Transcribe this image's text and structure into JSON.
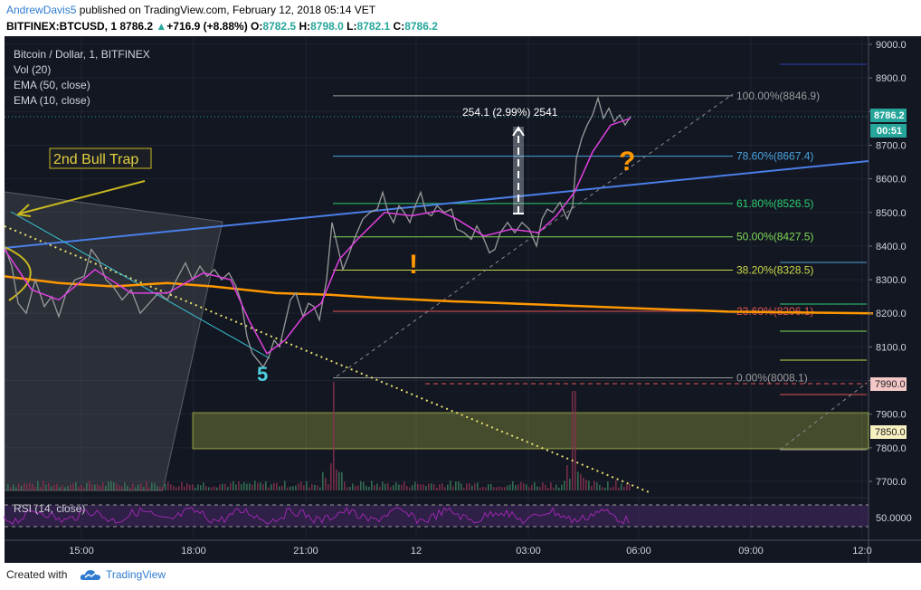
{
  "header": {
    "author": "AndrewDavis5",
    "published": "published on TradingView.com, February 12, 2018 05:14 VET",
    "symbol": "BITFINEX:BTCUSD, 1",
    "last": "8786.2",
    "change": "+716.9 (+8.88%)",
    "change_arrow": "▲",
    "o_label": "O:",
    "o": "8782.5",
    "h_label": "H:",
    "h": "8798.0",
    "l_label": "L:",
    "l": "8782.1",
    "c_label": "C:",
    "c": "8786.2"
  },
  "legend": {
    "title": "Bitcoin / Dollar, 1, BITFINEX",
    "vol": "Vol (20)",
    "ema50": "EMA (50, close)",
    "ema10": "EMA (10, close)"
  },
  "annotations": {
    "bull_trap": "2nd Bull Trap",
    "wave": "5",
    "measure": "254.1 (2.99%) 2541",
    "exclaim": "!",
    "question": "?"
  },
  "price_badges": {
    "current": "8786.2",
    "countdown": "00:51",
    "line1": "7990.0",
    "line2": "7850.0"
  },
  "rsi_label": "RSI (14, close)",
  "footer": {
    "created_with": "Created with",
    "brand": "TradingView"
  },
  "colors": {
    "background": "#131722",
    "up_candle": "#9a9a9a",
    "down_candle": "#c0407a",
    "ema10": "#e040e0",
    "ema50": "#ff9800",
    "trendline_blue": "#4a7ee8",
    "rsi": "#9c27b0",
    "brand": "#2e7bcf"
  },
  "chart_data": {
    "type": "line",
    "title": "Bitcoin / Dollar, 1, BITFINEX",
    "y_axis": {
      "min": 7650,
      "max": 9000,
      "ticks": [
        "9000.0",
        "8900.0",
        "8800.0",
        "8700.0",
        "8600.0",
        "8500.0",
        "8400.0",
        "8300.0",
        "8200.0",
        "8100.0",
        "8000.0",
        "7900.0",
        "7800.0",
        "7700.0"
      ]
    },
    "x_axis": {
      "ticks": [
        "15:00",
        "18:00",
        "21:00",
        "12",
        "03:00",
        "06:00",
        "09:00",
        "12:0"
      ]
    },
    "rsi_axis": {
      "ticks": [
        "50.0000"
      ]
    },
    "fibonacci": [
      {
        "level": "100.00%",
        "price": 8846.9,
        "label": "100.00%(8846.9)",
        "color": "#9a9a9a"
      },
      {
        "level": "78.60%",
        "price": 8667.4,
        "label": "78.60%(8667.4)",
        "color": "#4aa3df"
      },
      {
        "level": "61.80%",
        "price": 8526.5,
        "label": "61.80%(8526.5)",
        "color": "#2ecc71"
      },
      {
        "level": "50.00%",
        "price": 8427.5,
        "label": "50.00%(8427.5)",
        "color": "#7ed957"
      },
      {
        "level": "38.20%",
        "price": 8328.5,
        "label": "38.20%(8328.5)",
        "color": "#c9d94a"
      },
      {
        "level": "23.60%",
        "price": 8206.1,
        "label": "23.60%(8206.1)",
        "color": "#e05555"
      },
      {
        "level": "0.00%",
        "price": 8008.1,
        "label": "0.00%(8008.1)",
        "color": "#9a9a9a"
      }
    ],
    "price_path": [
      [
        0,
        8400
      ],
      [
        8,
        8340
      ],
      [
        15,
        8230
      ],
      [
        24,
        8200
      ],
      [
        34,
        8300
      ],
      [
        44,
        8220
      ],
      [
        52,
        8250
      ],
      [
        60,
        8190
      ],
      [
        68,
        8260
      ],
      [
        78,
        8300
      ],
      [
        88,
        8310
      ],
      [
        96,
        8390
      ],
      [
        104,
        8360
      ],
      [
        112,
        8300
      ],
      [
        120,
        8280
      ],
      [
        130,
        8240
      ],
      [
        140,
        8270
      ],
      [
        150,
        8200
      ],
      [
        160,
        8230
      ],
      [
        170,
        8260
      ],
      [
        180,
        8240
      ],
      [
        190,
        8300
      ],
      [
        200,
        8350
      ],
      [
        208,
        8300
      ],
      [
        216,
        8340
      ],
      [
        224,
        8310
      ],
      [
        232,
        8330
      ],
      [
        240,
        8300
      ],
      [
        248,
        8320
      ],
      [
        256,
        8280
      ],
      [
        262,
        8230
      ],
      [
        268,
        8130
      ],
      [
        274,
        8080
      ],
      [
        280,
        8060
      ],
      [
        286,
        8040
      ],
      [
        292,
        8070
      ],
      [
        298,
        8120
      ],
      [
        304,
        8100
      ],
      [
        310,
        8170
      ],
      [
        316,
        8240
      ],
      [
        322,
        8260
      ],
      [
        330,
        8190
      ],
      [
        336,
        8230
      ],
      [
        342,
        8220
      ],
      [
        348,
        8180
      ],
      [
        356,
        8300
      ],
      [
        362,
        8470
      ],
      [
        368,
        8400
      ],
      [
        374,
        8330
      ],
      [
        380,
        8370
      ],
      [
        388,
        8430
      ],
      [
        396,
        8480
      ],
      [
        404,
        8500
      ],
      [
        412,
        8510
      ],
      [
        418,
        8560
      ],
      [
        424,
        8500
      ],
      [
        430,
        8470
      ],
      [
        436,
        8520
      ],
      [
        442,
        8500
      ],
      [
        448,
        8470
      ],
      [
        454,
        8520
      ],
      [
        460,
        8560
      ],
      [
        466,
        8500
      ],
      [
        472,
        8490
      ],
      [
        478,
        8520
      ],
      [
        486,
        8500
      ],
      [
        494,
        8510
      ],
      [
        500,
        8450
      ],
      [
        508,
        8440
      ],
      [
        516,
        8420
      ],
      [
        522,
        8460
      ],
      [
        530,
        8420
      ],
      [
        536,
        8380
      ],
      [
        542,
        8390
      ],
      [
        548,
        8440
      ],
      [
        556,
        8470
      ],
      [
        564,
        8440
      ],
      [
        572,
        8470
      ],
      [
        580,
        8450
      ],
      [
        588,
        8400
      ],
      [
        594,
        8480
      ],
      [
        600,
        8510
      ],
      [
        606,
        8500
      ],
      [
        614,
        8530
      ],
      [
        622,
        8480
      ],
      [
        628,
        8520
      ],
      [
        632,
        8660
      ],
      [
        638,
        8720
      ],
      [
        644,
        8760
      ],
      [
        650,
        8790
      ],
      [
        656,
        8840
      ],
      [
        662,
        8780
      ],
      [
        668,
        8810
      ],
      [
        674,
        8770
      ],
      [
        680,
        8790
      ],
      [
        686,
        8760
      ],
      [
        692,
        8786
      ]
    ],
    "ema10_path": [
      [
        0,
        8390
      ],
      [
        30,
        8270
      ],
      [
        60,
        8240
      ],
      [
        100,
        8330
      ],
      [
        140,
        8260
      ],
      [
        180,
        8260
      ],
      [
        220,
        8320
      ],
      [
        250,
        8300
      ],
      [
        270,
        8180
      ],
      [
        290,
        8080
      ],
      [
        310,
        8120
      ],
      [
        330,
        8190
      ],
      [
        350,
        8230
      ],
      [
        370,
        8360
      ],
      [
        390,
        8420
      ],
      [
        420,
        8500
      ],
      [
        450,
        8490
      ],
      [
        480,
        8505
      ],
      [
        500,
        8480
      ],
      [
        530,
        8430
      ],
      [
        560,
        8450
      ],
      [
        590,
        8440
      ],
      [
        610,
        8490
      ],
      [
        630,
        8560
      ],
      [
        650,
        8680
      ],
      [
        670,
        8760
      ],
      [
        692,
        8780
      ]
    ],
    "ema50_path": [
      [
        0,
        8310
      ],
      [
        60,
        8290
      ],
      [
        120,
        8280
      ],
      [
        180,
        8290
      ],
      [
        230,
        8280
      ],
      [
        300,
        8260
      ],
      [
        360,
        8255
      ],
      [
        420,
        8245
      ],
      [
        500,
        8235
      ],
      [
        600,
        8225
      ],
      [
        700,
        8215
      ],
      [
        800,
        8205
      ],
      [
        960,
        8200
      ]
    ]
  }
}
